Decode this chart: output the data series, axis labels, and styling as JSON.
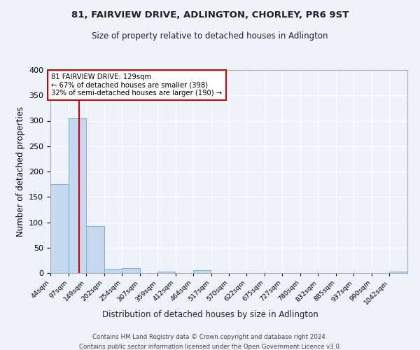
{
  "title": "81, FAIRVIEW DRIVE, ADLINGTON, CHORLEY, PR6 9ST",
  "subtitle": "Size of property relative to detached houses in Adlington",
  "xlabel": "Distribution of detached houses by size in Adlington",
  "ylabel": "Number of detached properties",
  "footer_line1": "Contains HM Land Registry data © Crown copyright and database right 2024.",
  "footer_line2": "Contains public sector information licensed under the Open Government Licence v3.0.",
  "bin_edges": [
    44,
    97,
    149,
    202,
    254,
    307,
    359,
    412,
    464,
    517,
    570,
    622,
    675,
    727,
    780,
    832,
    885,
    937,
    990,
    1042,
    1095
  ],
  "bar_heights": [
    175,
    305,
    92,
    8,
    9,
    0,
    3,
    0,
    5,
    0,
    0,
    0,
    0,
    0,
    0,
    0,
    0,
    0,
    0,
    3
  ],
  "bar_color": "#c5d8f0",
  "bar_edge_color": "#7bafd4",
  "property_size": 129,
  "red_line_color": "#cc0000",
  "annotation_text": "81 FAIRVIEW DRIVE: 129sqm\n← 67% of detached houses are smaller (398)\n32% of semi-detached houses are larger (190) →",
  "annotation_box_color": "#ffffff",
  "annotation_box_edge_color": "#cc0000",
  "background_color": "#eef2fb",
  "grid_color": "#ffffff",
  "ylim": [
    0,
    400
  ],
  "yticks": [
    0,
    50,
    100,
    150,
    200,
    250,
    300,
    350,
    400
  ]
}
